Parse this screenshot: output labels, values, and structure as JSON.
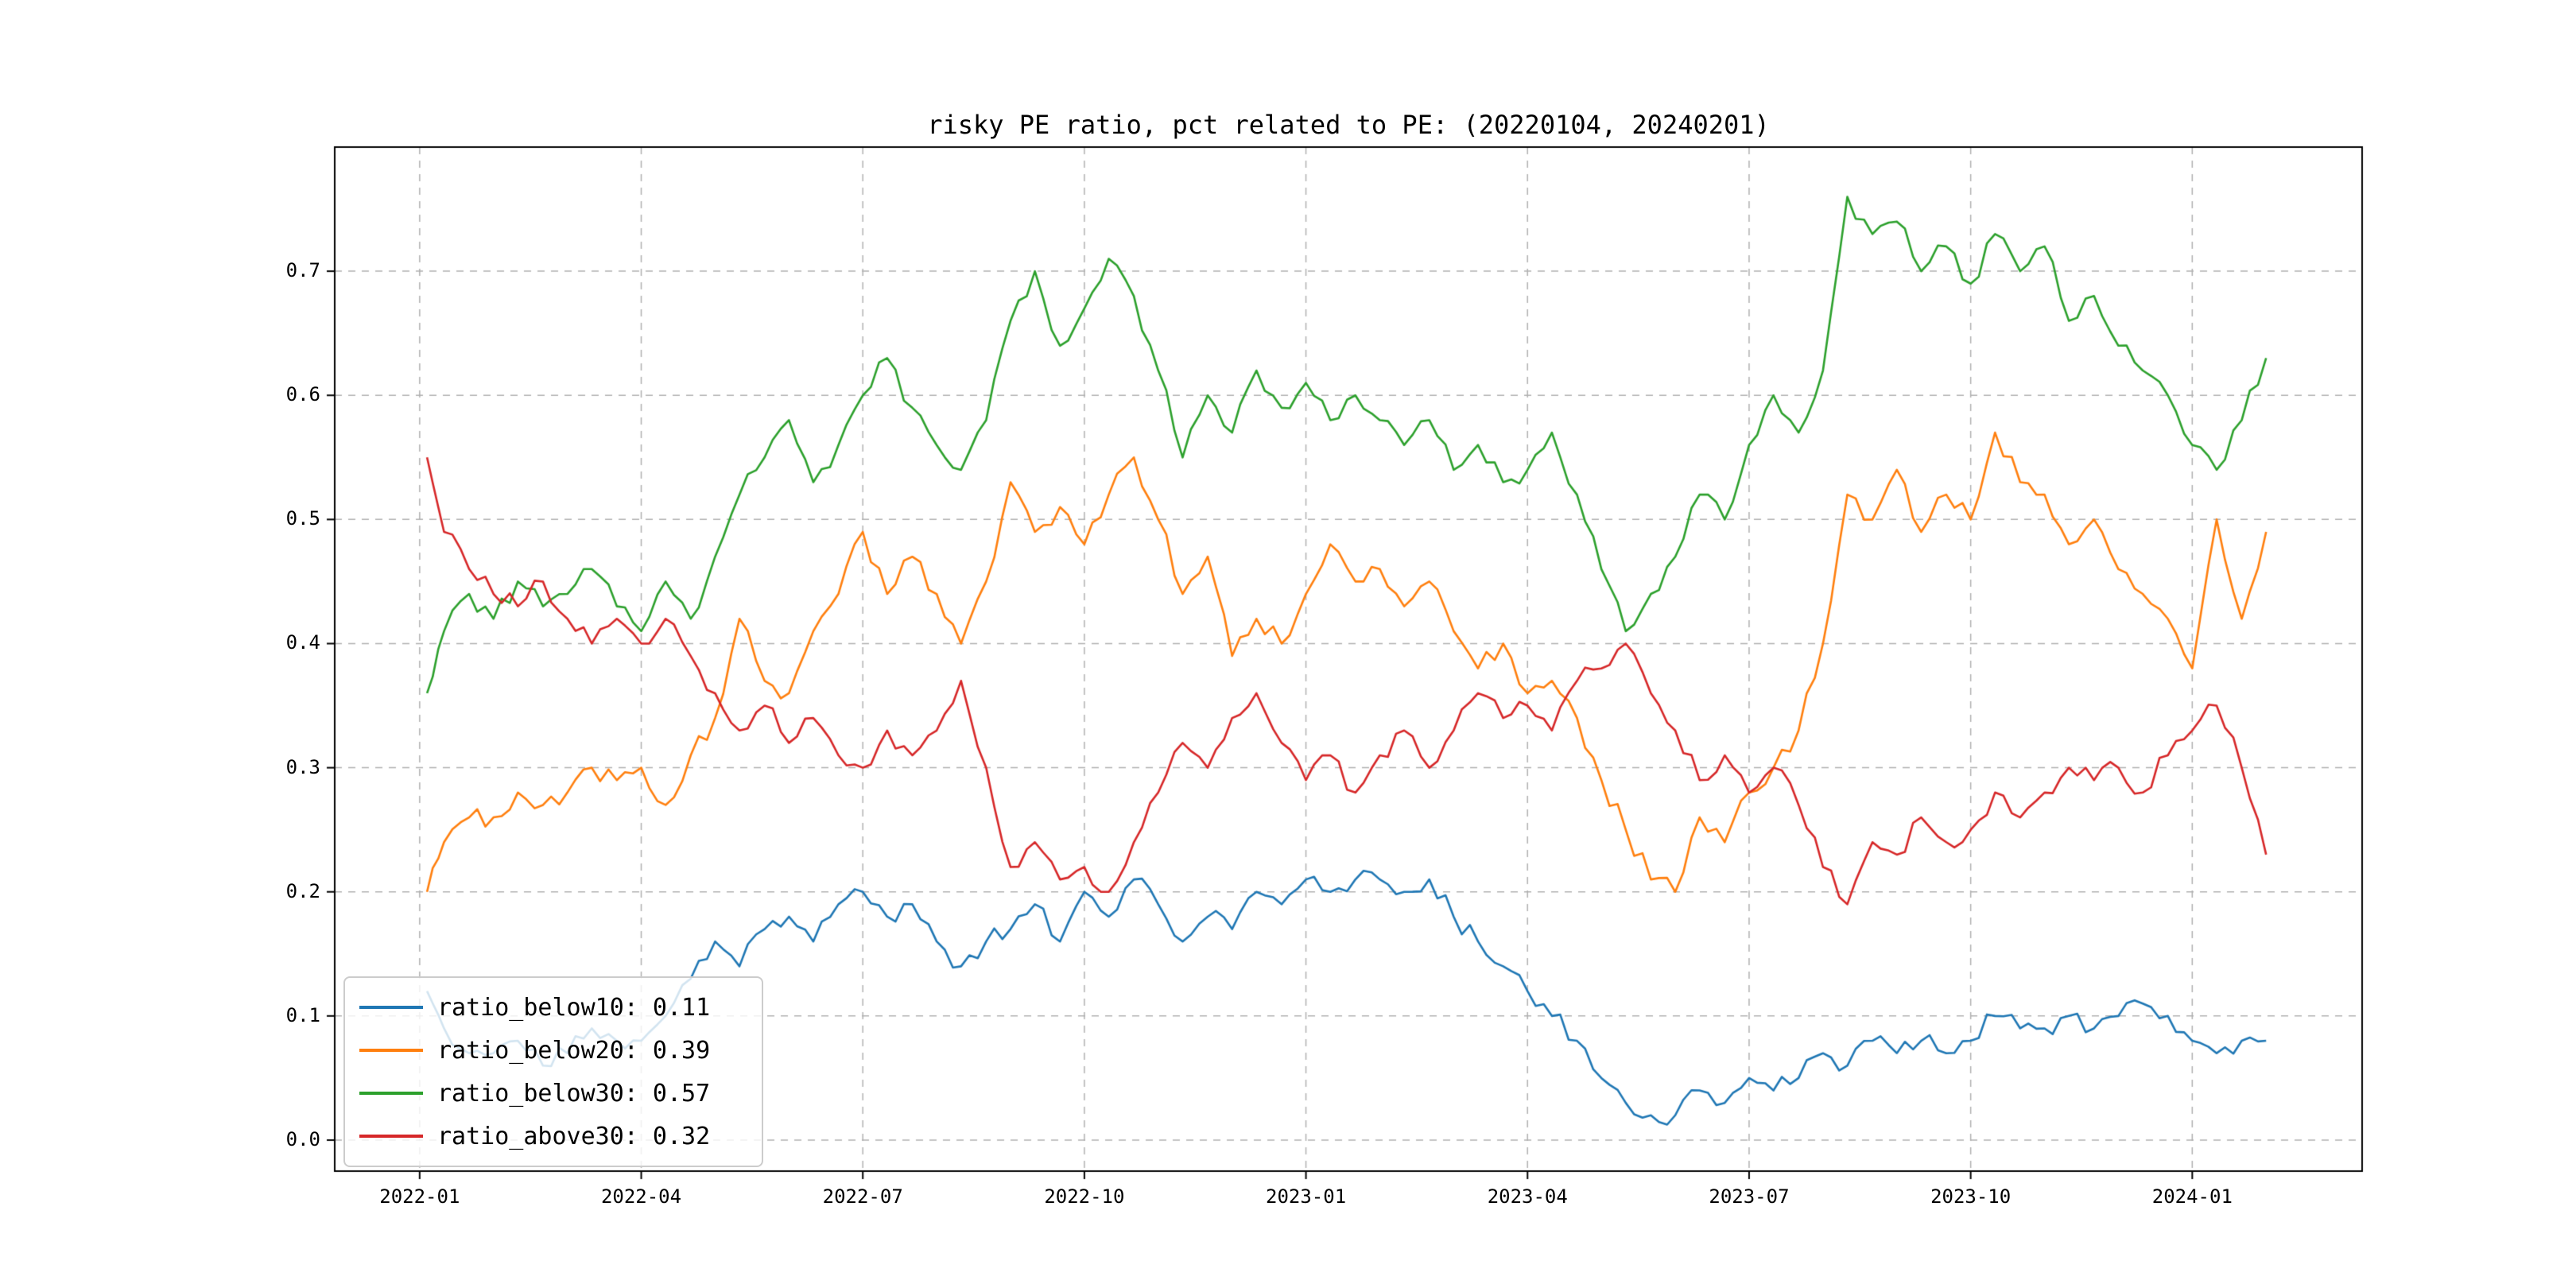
{
  "chart_data": {
    "type": "line",
    "title": "risky PE ratio, pct related to PE: (20220104, 20240201)",
    "xlabel": "",
    "ylabel": "",
    "xlim": [
      -1.15,
      26.3
    ],
    "ylim": [
      -0.025,
      0.8
    ],
    "grid": true,
    "grid_color": "#b0b0b0",
    "axis_color": "#000000",
    "legend_position": "lower left",
    "noise_amplitude": 0.008,
    "x_unit": "months since 2022-01",
    "x_ticks": [
      {
        "t": 0,
        "label": "2022-01"
      },
      {
        "t": 3,
        "label": "2022-04"
      },
      {
        "t": 6,
        "label": "2022-07"
      },
      {
        "t": 9,
        "label": "2022-10"
      },
      {
        "t": 12,
        "label": "2023-01"
      },
      {
        "t": 15,
        "label": "2023-04"
      },
      {
        "t": 18,
        "label": "2023-07"
      },
      {
        "t": 21,
        "label": "2023-10"
      },
      {
        "t": 24,
        "label": "2024-01"
      }
    ],
    "y_ticks": [
      {
        "v": 0.0,
        "label": "0.0"
      },
      {
        "v": 0.1,
        "label": "0.1"
      },
      {
        "v": 0.2,
        "label": "0.2"
      },
      {
        "v": 0.3,
        "label": "0.3"
      },
      {
        "v": 0.4,
        "label": "0.4"
      },
      {
        "v": 0.5,
        "label": "0.5"
      },
      {
        "v": 0.6,
        "label": "0.6"
      },
      {
        "v": 0.7,
        "label": "0.7"
      }
    ],
    "x": [
      0.1,
      0.33,
      0.67,
      1,
      1.33,
      1.67,
      2,
      2.33,
      2.67,
      3,
      3.33,
      3.67,
      4,
      4.33,
      4.67,
      5,
      5.33,
      5.67,
      6,
      6.33,
      6.67,
      7,
      7.33,
      7.67,
      8,
      8.33,
      8.67,
      9,
      9.33,
      9.67,
      10,
      10.33,
      10.67,
      11,
      11.33,
      11.67,
      12,
      12.33,
      12.67,
      13,
      13.33,
      13.67,
      14,
      14.33,
      14.67,
      15,
      15.33,
      15.67,
      16,
      16.33,
      16.67,
      17,
      17.33,
      17.67,
      18,
      18.33,
      18.67,
      19,
      19.33,
      19.67,
      20,
      20.33,
      20.67,
      21,
      21.33,
      21.67,
      22,
      22.33,
      22.67,
      23,
      23.33,
      23.67,
      24,
      24.33,
      24.67,
      25
    ],
    "series": [
      {
        "name": "ratio_below10",
        "color": "#1f77b4",
        "values": [
          0.12,
          0.09,
          0.07,
          0.07,
          0.08,
          0.06,
          0.07,
          0.09,
          0.08,
          0.08,
          0.1,
          0.13,
          0.16,
          0.14,
          0.17,
          0.18,
          0.16,
          0.19,
          0.2,
          0.18,
          0.19,
          0.16,
          0.14,
          0.16,
          0.17,
          0.19,
          0.16,
          0.2,
          0.18,
          0.21,
          0.19,
          0.16,
          0.18,
          0.17,
          0.2,
          0.19,
          0.21,
          0.2,
          0.21,
          0.21,
          0.2,
          0.21,
          0.18,
          0.16,
          0.14,
          0.12,
          0.1,
          0.08,
          0.05,
          0.03,
          0.02,
          0.02,
          0.04,
          0.03,
          0.05,
          0.04,
          0.05,
          0.07,
          0.06,
          0.08,
          0.07,
          0.08,
          0.07,
          0.08,
          0.1,
          0.09,
          0.09,
          0.1,
          0.09,
          0.1,
          0.11,
          0.1,
          0.08,
          0.07,
          0.08,
          0.08
        ]
      },
      {
        "name": "ratio_below20",
        "color": "#ff7f0e",
        "values": [
          0.2,
          0.24,
          0.26,
          0.26,
          0.28,
          0.27,
          0.28,
          0.3,
          0.29,
          0.3,
          0.27,
          0.31,
          0.34,
          0.42,
          0.37,
          0.36,
          0.41,
          0.44,
          0.49,
          0.44,
          0.47,
          0.44,
          0.4,
          0.45,
          0.53,
          0.49,
          0.51,
          0.48,
          0.52,
          0.55,
          0.5,
          0.44,
          0.47,
          0.39,
          0.42,
          0.4,
          0.44,
          0.48,
          0.45,
          0.46,
          0.43,
          0.45,
          0.41,
          0.38,
          0.4,
          0.36,
          0.37,
          0.34,
          0.29,
          0.25,
          0.21,
          0.2,
          0.26,
          0.24,
          0.28,
          0.3,
          0.33,
          0.4,
          0.52,
          0.5,
          0.54,
          0.49,
          0.52,
          0.5,
          0.57,
          0.53,
          0.52,
          0.48,
          0.5,
          0.46,
          0.44,
          0.42,
          0.38,
          0.5,
          0.42,
          0.49
        ]
      },
      {
        "name": "ratio_below30",
        "color": "#2ca02c",
        "values": [
          0.36,
          0.41,
          0.44,
          0.42,
          0.45,
          0.43,
          0.44,
          0.46,
          0.43,
          0.41,
          0.45,
          0.42,
          0.47,
          0.52,
          0.55,
          0.58,
          0.53,
          0.56,
          0.6,
          0.63,
          0.59,
          0.56,
          0.54,
          0.58,
          0.66,
          0.7,
          0.64,
          0.67,
          0.71,
          0.68,
          0.62,
          0.55,
          0.6,
          0.57,
          0.62,
          0.59,
          0.61,
          0.58,
          0.6,
          0.58,
          0.56,
          0.58,
          0.54,
          0.56,
          0.53,
          0.54,
          0.57,
          0.52,
          0.46,
          0.41,
          0.44,
          0.47,
          0.52,
          0.5,
          0.56,
          0.6,
          0.57,
          0.62,
          0.76,
          0.73,
          0.74,
          0.7,
          0.72,
          0.69,
          0.73,
          0.7,
          0.72,
          0.66,
          0.68,
          0.64,
          0.62,
          0.6,
          0.56,
          0.54,
          0.58,
          0.63
        ]
      },
      {
        "name": "ratio_above30",
        "color": "#d62728",
        "values": [
          0.55,
          0.49,
          0.46,
          0.44,
          0.43,
          0.45,
          0.42,
          0.4,
          0.42,
          0.4,
          0.42,
          0.39,
          0.36,
          0.33,
          0.35,
          0.32,
          0.34,
          0.31,
          0.3,
          0.33,
          0.31,
          0.33,
          0.37,
          0.3,
          0.22,
          0.24,
          0.21,
          0.22,
          0.2,
          0.24,
          0.28,
          0.32,
          0.3,
          0.34,
          0.36,
          0.32,
          0.29,
          0.31,
          0.28,
          0.31,
          0.33,
          0.3,
          0.33,
          0.36,
          0.34,
          0.35,
          0.33,
          0.37,
          0.38,
          0.4,
          0.36,
          0.33,
          0.29,
          0.31,
          0.28,
          0.3,
          0.27,
          0.22,
          0.19,
          0.24,
          0.23,
          0.26,
          0.24,
          0.25,
          0.28,
          0.26,
          0.28,
          0.3,
          0.29,
          0.3,
          0.28,
          0.31,
          0.33,
          0.35,
          0.3,
          0.23
        ]
      }
    ],
    "legend": [
      {
        "label": "ratio_below10: 0.11",
        "color": "#1f77b4"
      },
      {
        "label": "ratio_below20: 0.39",
        "color": "#ff7f0e"
      },
      {
        "label": "ratio_below30: 0.57",
        "color": "#2ca02c"
      },
      {
        "label": "ratio_above30: 0.32",
        "color": "#d62728"
      }
    ]
  }
}
